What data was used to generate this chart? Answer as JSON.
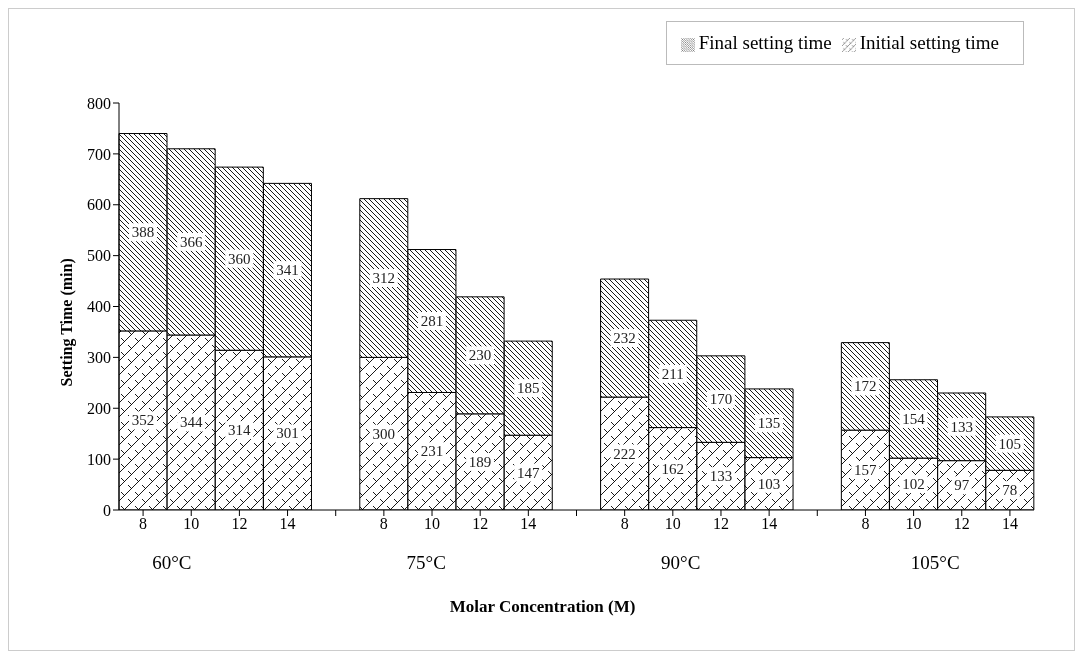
{
  "chart_data": {
    "type": "bar",
    "stacked": true,
    "xlabel": "Molar Concentration (M)",
    "ylabel": "Setting Time (min)",
    "categories": [
      "8",
      "10",
      "12",
      "14",
      null,
      "8",
      "10",
      "12",
      "14",
      null,
      "8",
      "10",
      "12",
      "14",
      null,
      "8",
      "10",
      "12",
      "14"
    ],
    "series": [
      {
        "name": "Initial setting time",
        "color": "#000000",
        "values": [
          352,
          344,
          314,
          301,
          null,
          300,
          231,
          189,
          147,
          null,
          222,
          162,
          133,
          103,
          null,
          157,
          102,
          97,
          78
        ]
      },
      {
        "name": "Final setting time",
        "color": "#000000",
        "values": [
          388,
          366,
          360,
          341,
          null,
          312,
          281,
          230,
          185,
          null,
          232,
          211,
          170,
          135,
          null,
          172,
          154,
          133,
          105
        ]
      }
    ],
    "annotations": [
      "60°C",
      "75°C",
      "90°C",
      "105°C"
    ],
    "ylim": [
      0,
      800
    ],
    "yticks": [
      0,
      100,
      200,
      300,
      400,
      500,
      600,
      700,
      800
    ],
    "data_labels": true,
    "legend": "top right",
    "grid": false
  }
}
